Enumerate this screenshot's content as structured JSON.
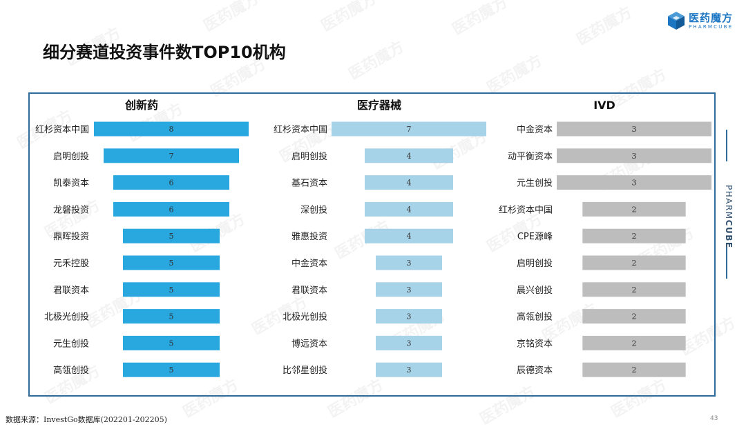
{
  "page": {
    "title": "细分赛道投资事件数TOP10机构",
    "source": "数据来源：InvestGo数据库(202201-202205)",
    "page_number": "43"
  },
  "logo": {
    "name": "医药魔方",
    "sub": "PHARMCUBE",
    "icon": "cube-logo-icon"
  },
  "side_brand": {
    "light": "PHARM",
    "bold": "CUBE"
  },
  "watermark_text": "医药魔方",
  "colors": {
    "brand": "#1d76c2",
    "frame": "#2f6b9a",
    "innovative_drug": "#29a8e0",
    "medical_device": "#a6d3e8",
    "ivd": "#bdbdbd"
  },
  "chart_data": [
    {
      "type": "bar",
      "orientation": "horizontal-centered",
      "title": "创新药",
      "categories": [
        "红杉资本中国",
        "启明创投",
        "凯泰资本",
        "龙磐投资",
        "鼎晖投资",
        "元禾控股",
        "君联资本",
        "北极光创投",
        "元生创投",
        "高瓴创投"
      ],
      "values": [
        8,
        7,
        6,
        6,
        5,
        5,
        5,
        5,
        5,
        5
      ],
      "value_max": 8,
      "color": "#29a8e0"
    },
    {
      "type": "bar",
      "orientation": "horizontal-centered",
      "title": "医疗器械",
      "categories": [
        "红杉资本中国",
        "启明创投",
        "基石资本",
        "深创投",
        "雅惠投资",
        "中金资本",
        "君联资本",
        "北极光创投",
        "博远资本",
        "比邻星创投"
      ],
      "values": [
        7,
        4,
        4,
        4,
        4,
        3,
        3,
        3,
        3,
        3
      ],
      "value_max": 7,
      "color": "#a6d3e8"
    },
    {
      "type": "bar",
      "orientation": "horizontal-centered",
      "title": "IVD",
      "categories": [
        "中金资本",
        "动平衡资本",
        "元生创投",
        "红杉资本中国",
        "CPE源峰",
        "启明创投",
        "晨兴创投",
        "高瓴创投",
        "京铭资本",
        "辰德资本"
      ],
      "values": [
        3,
        3,
        3,
        2,
        2,
        2,
        2,
        2,
        2,
        2
      ],
      "value_max": 3,
      "color": "#bdbdbd"
    }
  ]
}
